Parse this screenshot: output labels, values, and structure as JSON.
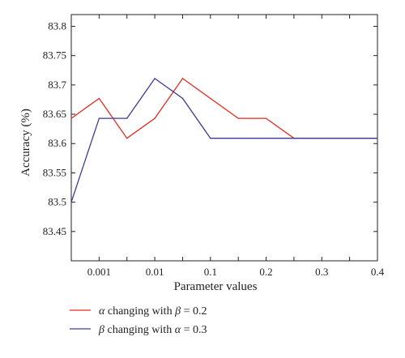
{
  "chart_data": {
    "type": "line",
    "title": "",
    "xlabel": "Parameter values",
    "ylabel": "Accuracy (%)",
    "x_tick_labels": [
      "0.001",
      "0.01",
      "0.1",
      "0.2",
      "0.3",
      "0.4"
    ],
    "y_tick_labels": [
      "83.45",
      "83.5",
      "83.55",
      "83.6",
      "83.65",
      "83.7",
      "83.75",
      "83.8"
    ],
    "y_ticks": [
      83.45,
      83.5,
      83.55,
      83.6,
      83.65,
      83.7,
      83.75,
      83.8
    ],
    "ylim": [
      83.4,
      83.82
    ],
    "grid": false,
    "legend_position": "below",
    "x_points": [
      "0.0005",
      "0.001",
      "0.005",
      "0.01",
      "0.05",
      "0.1",
      "0.15",
      "0.2",
      "0.25",
      "0.3",
      "0.35",
      "0.4"
    ],
    "series": [
      {
        "name": "α changing with β = 0.2",
        "color": "#e8291f",
        "values": [
          83.643,
          83.677,
          83.609,
          83.643,
          83.711,
          83.677,
          83.643,
          83.643,
          83.609,
          83.609,
          83.609,
          83.609
        ]
      },
      {
        "name": "β changing with α = 0.3",
        "color": "#3a3a96",
        "values": [
          83.5,
          83.643,
          83.643,
          83.711,
          83.677,
          83.609,
          83.609,
          83.609,
          83.609,
          83.609,
          83.609,
          83.609
        ]
      }
    ],
    "legend": [
      {
        "greek": "α",
        "rest": " changing with ",
        "greek2": "β",
        "tail": " = 0.2"
      },
      {
        "greek": "β",
        "rest": " changing with ",
        "greek2": "α",
        "tail": " = 0.3"
      }
    ]
  }
}
